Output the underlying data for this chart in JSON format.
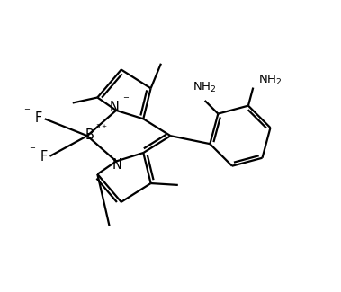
{
  "background_color": "#ffffff",
  "line_color": "#000000",
  "line_width": 1.6,
  "font_size": 9.5,
  "figsize": [
    3.79,
    3.25
  ],
  "dpi": 100,
  "xlim": [
    0,
    10
  ],
  "ylim": [
    0,
    8.5
  ]
}
